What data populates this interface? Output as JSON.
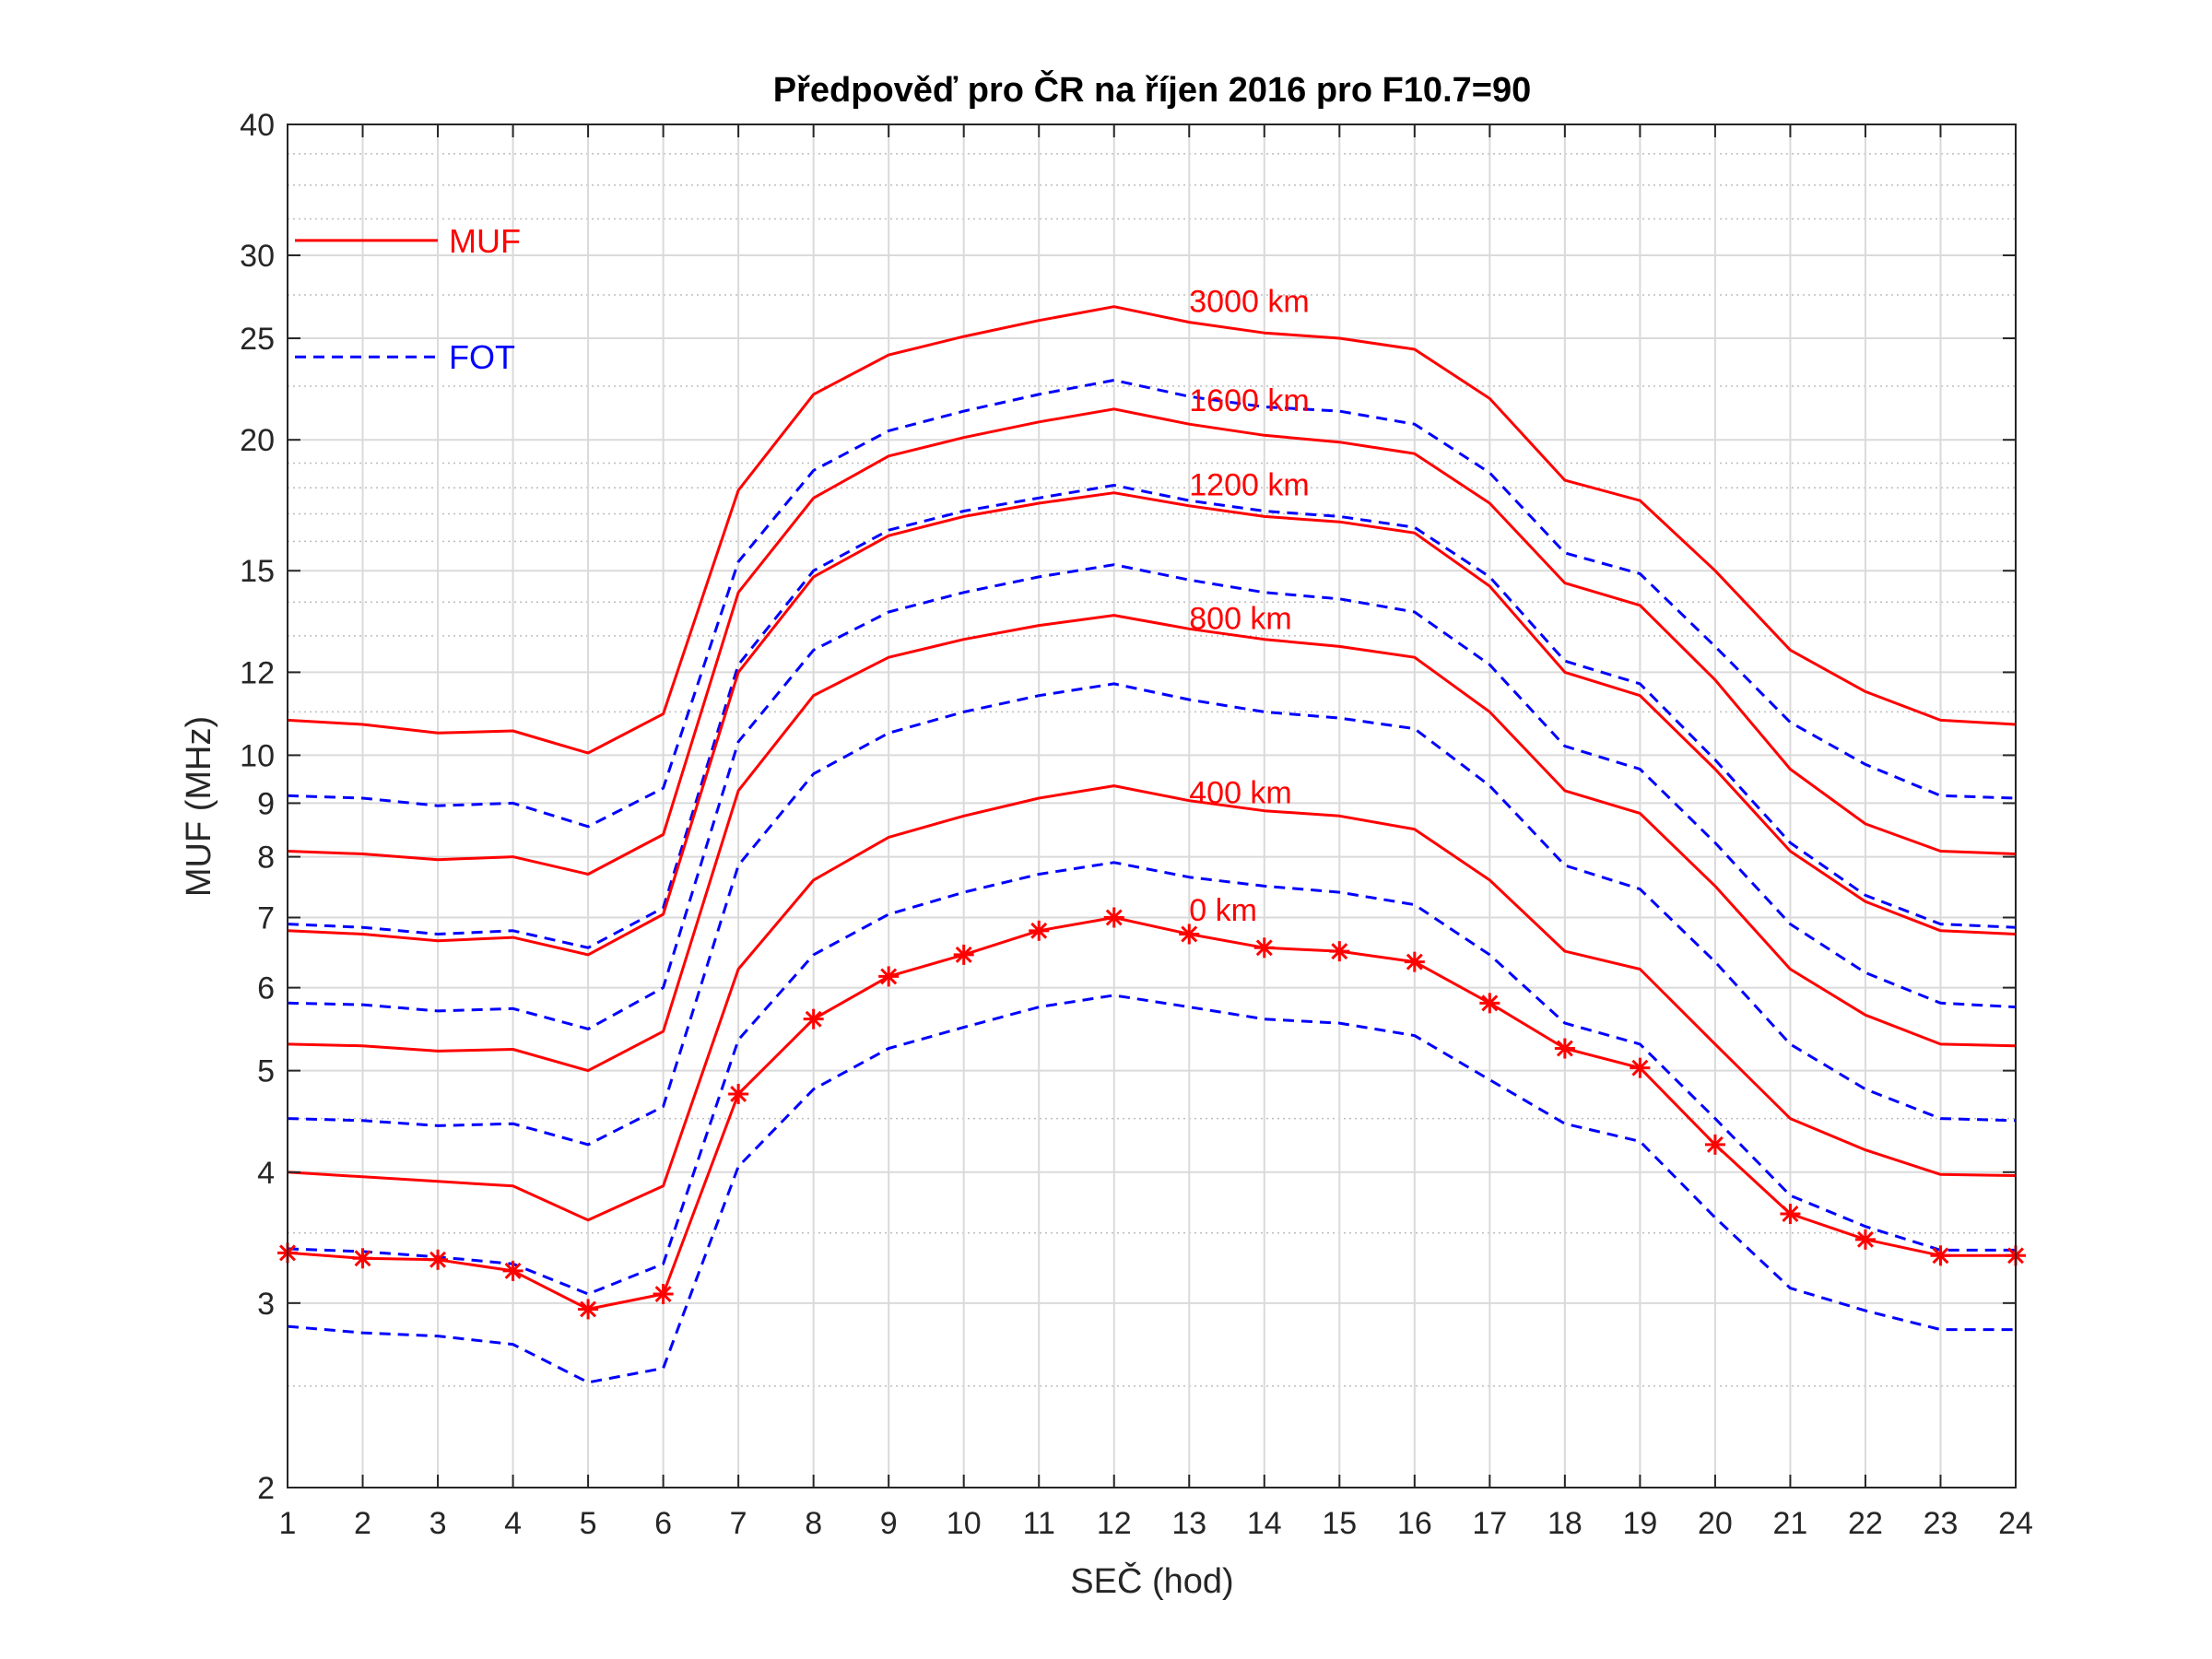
{
  "chart_data": {
    "type": "line",
    "title": "Předpověď pro ČR na říjen 2016 pro F10.7=90",
    "xlabel": "SEČ (hod)",
    "ylabel": "MUF (MHz)",
    "x": [
      1,
      2,
      3,
      4,
      5,
      6,
      7,
      8,
      9,
      10,
      11,
      12,
      13,
      14,
      15,
      16,
      17,
      18,
      19,
      20,
      21,
      22,
      23,
      24
    ],
    "xlim": [
      1,
      24
    ],
    "ylim": [
      2,
      40
    ],
    "yscale": "log",
    "grid": "on (major and minor)",
    "xticks": [
      "1",
      "2",
      "3",
      "4",
      "5",
      "6",
      "7",
      "8",
      "9",
      "10",
      "11",
      "12",
      "13",
      "14",
      "15",
      "16",
      "17",
      "18",
      "19",
      "20",
      "21",
      "22",
      "23",
      "24"
    ],
    "yticks": [
      {
        "value": 2,
        "label": "2"
      },
      {
        "value": 3,
        "label": "3"
      },
      {
        "value": 4,
        "label": "4"
      },
      {
        "value": 5,
        "label": "5"
      },
      {
        "value": 6,
        "label": "6"
      },
      {
        "value": 7,
        "label": "7"
      },
      {
        "value": 8,
        "label": "8"
      },
      {
        "value": 9,
        "label": "9"
      },
      {
        "value": 10,
        "label": "10"
      },
      {
        "value": 12,
        "label": "12"
      },
      {
        "value": 15,
        "label": "15"
      },
      {
        "value": 20,
        "label": "20"
      },
      {
        "value": 25,
        "label": "25"
      },
      {
        "value": 30,
        "label": "30"
      },
      {
        "value": 40,
        "label": "40"
      }
    ],
    "minor_yticks": [
      2.5,
      3.5,
      4.5,
      11,
      13,
      14,
      16,
      17,
      18,
      19,
      22.5,
      27.5,
      32.5,
      35,
      37.5
    ],
    "legend": {
      "position": "top-left",
      "entries": [
        {
          "label": "MUF",
          "style": "solid",
          "color": "#ff0000"
        },
        {
          "label": "FOT",
          "style": "dashed",
          "color": "#0000ff"
        }
      ]
    },
    "distance_labels": [
      {
        "text": "3000 km",
        "x": 13,
        "y": 26.5
      },
      {
        "text": "1600 km",
        "x": 13,
        "y": 21.3
      },
      {
        "text": "1200 km",
        "x": 13,
        "y": 17.7
      },
      {
        "text": "800 km",
        "x": 13,
        "y": 13.2
      },
      {
        "text": "400 km",
        "x": 13,
        "y": 9.0
      },
      {
        "text": "0 km",
        "x": 13,
        "y": 6.95
      }
    ],
    "series": [
      {
        "kind": "MUF",
        "distance": "3000 km",
        "values": [
          10.8,
          10.7,
          10.5,
          10.55,
          10.05,
          10.95,
          17.9,
          22.1,
          24.1,
          25.1,
          26.0,
          26.8,
          25.9,
          25.3,
          25.0,
          24.4,
          21.9,
          18.3,
          17.5,
          15.0,
          12.6,
          11.5,
          10.8,
          10.7
        ]
      },
      {
        "kind": "FOT",
        "distance": "3000 km",
        "values": [
          9.15,
          9.1,
          8.95,
          9.0,
          8.55,
          9.3,
          15.3,
          18.7,
          20.4,
          21.3,
          22.1,
          22.8,
          22.0,
          21.5,
          21.3,
          20.7,
          18.6,
          15.6,
          14.9,
          12.7,
          10.75,
          9.8,
          9.15,
          9.1
        ]
      },
      {
        "kind": "MUF",
        "distance": "1600 km",
        "values": [
          8.1,
          8.05,
          7.95,
          8.0,
          7.7,
          8.4,
          14.3,
          17.6,
          19.3,
          20.1,
          20.8,
          21.4,
          20.7,
          20.2,
          19.9,
          19.4,
          17.4,
          14.6,
          13.9,
          11.8,
          9.7,
          8.6,
          8.1,
          8.05
        ]
      },
      {
        "kind": "FOT",
        "distance": "1600 km",
        "values": [
          6.9,
          6.85,
          6.75,
          6.8,
          6.55,
          7.15,
          12.2,
          15.0,
          16.4,
          17.1,
          17.6,
          18.1,
          17.5,
          17.1,
          16.9,
          16.5,
          14.8,
          12.3,
          11.7,
          9.9,
          8.25,
          7.35,
          6.9,
          6.85
        ]
      },
      {
        "kind": "MUF",
        "distance": "1200 km",
        "values": [
          6.8,
          6.75,
          6.65,
          6.7,
          6.45,
          7.05,
          12.0,
          14.8,
          16.2,
          16.9,
          17.4,
          17.8,
          17.3,
          16.9,
          16.7,
          16.3,
          14.5,
          12.0,
          11.4,
          9.7,
          8.1,
          7.25,
          6.8,
          6.75
        ]
      },
      {
        "kind": "FOT",
        "distance": "1200 km",
        "values": [
          5.8,
          5.78,
          5.7,
          5.73,
          5.48,
          6.0,
          10.3,
          12.6,
          13.7,
          14.3,
          14.8,
          15.2,
          14.7,
          14.3,
          14.1,
          13.7,
          12.2,
          10.2,
          9.7,
          8.25,
          6.9,
          6.2,
          5.8,
          5.75
        ]
      },
      {
        "kind": "MUF",
        "distance": "800 km",
        "values": [
          5.3,
          5.28,
          5.22,
          5.24,
          5.0,
          5.45,
          9.25,
          11.4,
          12.4,
          12.9,
          13.3,
          13.6,
          13.2,
          12.9,
          12.7,
          12.4,
          11.0,
          9.25,
          8.8,
          7.5,
          6.25,
          5.65,
          5.3,
          5.28
        ]
      },
      {
        "kind": "FOT",
        "distance": "800 km",
        "values": [
          4.5,
          4.48,
          4.43,
          4.45,
          4.25,
          4.62,
          7.85,
          9.6,
          10.5,
          11.0,
          11.4,
          11.7,
          11.3,
          11.0,
          10.85,
          10.6,
          9.35,
          7.85,
          7.45,
          6.35,
          5.3,
          4.8,
          4.5,
          4.48
        ]
      },
      {
        "kind": "MUF",
        "distance": "400 km",
        "values": [
          4.0,
          3.96,
          3.92,
          3.88,
          3.6,
          3.88,
          6.25,
          7.6,
          8.35,
          8.75,
          9.1,
          9.35,
          9.05,
          8.85,
          8.75,
          8.5,
          7.6,
          6.5,
          6.25,
          5.3,
          4.5,
          4.2,
          3.98,
          3.97
        ]
      },
      {
        "kind": "FOT",
        "distance": "400 km",
        "values": [
          3.38,
          3.36,
          3.32,
          3.27,
          3.06,
          3.27,
          5.35,
          6.45,
          7.05,
          7.4,
          7.7,
          7.9,
          7.65,
          7.5,
          7.4,
          7.2,
          6.45,
          5.55,
          5.3,
          4.5,
          3.8,
          3.55,
          3.37,
          3.37
        ]
      },
      {
        "kind": "MUF",
        "distance": "0 km",
        "markers": "asterisk",
        "values": [
          3.35,
          3.31,
          3.3,
          3.22,
          2.96,
          3.06,
          4.75,
          5.6,
          6.15,
          6.45,
          6.8,
          7.0,
          6.75,
          6.55,
          6.5,
          6.35,
          5.8,
          5.25,
          5.03,
          4.25,
          3.65,
          3.45,
          3.33,
          3.33
        ]
      },
      {
        "kind": "FOT",
        "distance": "0 km",
        "values": [
          2.85,
          2.81,
          2.79,
          2.74,
          2.52,
          2.6,
          4.05,
          4.8,
          5.25,
          5.5,
          5.75,
          5.9,
          5.75,
          5.6,
          5.55,
          5.4,
          4.9,
          4.45,
          4.28,
          3.62,
          3.1,
          2.95,
          2.83,
          2.83
        ]
      }
    ]
  }
}
